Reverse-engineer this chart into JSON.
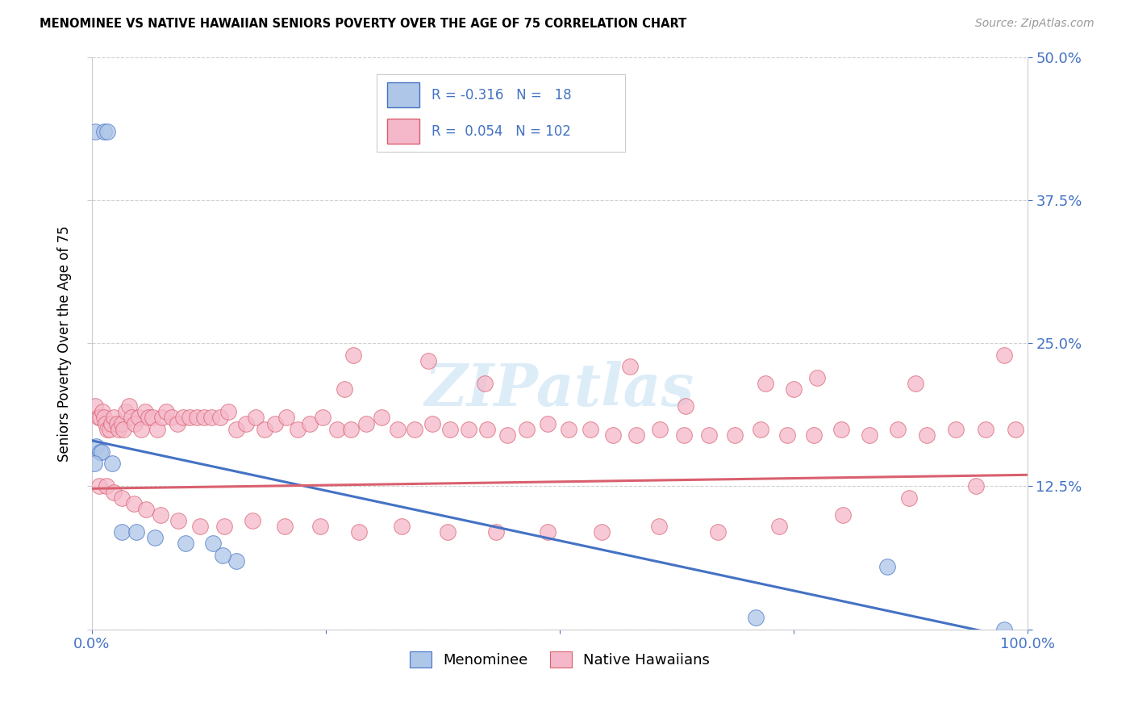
{
  "title": "MENOMINEE VS NATIVE HAWAIIAN SENIORS POVERTY OVER THE AGE OF 75 CORRELATION CHART",
  "source": "Source: ZipAtlas.com",
  "ylabel": "Seniors Poverty Over the Age of 75",
  "xlim": [
    0,
    1.0
  ],
  "ylim": [
    0,
    0.5
  ],
  "yticks": [
    0.0,
    0.125,
    0.25,
    0.375,
    0.5
  ],
  "ytick_labels_right": [
    "",
    "12.5%",
    "25.0%",
    "37.5%",
    "50.0%"
  ],
  "xticks": [
    0.0,
    0.25,
    0.5,
    0.75,
    1.0
  ],
  "xtick_labels": [
    "0.0%",
    "",
    "",
    "",
    "100.0%"
  ],
  "menominee_R": -0.316,
  "menominee_N": 18,
  "hawaiian_R": 0.054,
  "hawaiian_N": 102,
  "menominee_color": "#aec6e8",
  "hawaiian_color": "#f5b8ca",
  "menominee_line_color": "#4472c4",
  "hawaiian_line_color": "#d9606e",
  "axis_color": "#4472c4",
  "background_color": "#ffffff",
  "menominee_x": [
    0.004,
    0.013,
    0.017,
    0.005,
    0.009,
    0.011,
    0.003,
    0.022,
    0.032,
    0.048,
    0.068,
    0.1,
    0.13,
    0.155,
    0.14,
    0.85,
    0.71,
    0.975
  ],
  "menominee_y": [
    0.435,
    0.435,
    0.435,
    0.16,
    0.155,
    0.155,
    0.145,
    0.145,
    0.085,
    0.085,
    0.08,
    0.075,
    0.075,
    0.06,
    0.065,
    0.055,
    0.01,
    0.0
  ],
  "hawaiian_x": [
    0.004,
    0.007,
    0.009,
    0.012,
    0.013,
    0.015,
    0.017,
    0.019,
    0.021,
    0.024,
    0.027,
    0.029,
    0.032,
    0.034,
    0.037,
    0.04,
    0.043,
    0.046,
    0.05,
    0.053,
    0.057,
    0.061,
    0.065,
    0.07,
    0.075,
    0.08,
    0.086,
    0.092,
    0.098,
    0.105,
    0.112,
    0.12,
    0.128,
    0.137,
    0.146,
    0.155,
    0.165,
    0.175,
    0.185,
    0.196,
    0.208,
    0.22,
    0.233,
    0.247,
    0.262,
    0.277,
    0.293,
    0.31,
    0.327,
    0.345,
    0.364,
    0.383,
    0.403,
    0.423,
    0.444,
    0.465,
    0.487,
    0.51,
    0.533,
    0.557,
    0.582,
    0.607,
    0.633,
    0.66,
    0.687,
    0.715,
    0.743,
    0.772,
    0.801,
    0.831,
    0.861,
    0.892,
    0.923,
    0.955,
    0.987,
    0.008,
    0.016,
    0.024,
    0.032,
    0.045,
    0.058,
    0.074,
    0.093,
    0.116,
    0.142,
    0.172,
    0.206,
    0.244,
    0.286,
    0.331,
    0.38,
    0.432,
    0.487,
    0.545,
    0.606,
    0.669,
    0.735,
    0.803,
    0.873,
    0.945,
    0.28,
    0.36
  ],
  "hawaiian_y": [
    0.195,
    0.185,
    0.185,
    0.19,
    0.185,
    0.18,
    0.175,
    0.175,
    0.18,
    0.185,
    0.18,
    0.175,
    0.18,
    0.175,
    0.19,
    0.195,
    0.185,
    0.18,
    0.185,
    0.175,
    0.19,
    0.185,
    0.185,
    0.175,
    0.185,
    0.19,
    0.185,
    0.18,
    0.185,
    0.185,
    0.185,
    0.185,
    0.185,
    0.185,
    0.19,
    0.175,
    0.18,
    0.185,
    0.175,
    0.18,
    0.185,
    0.175,
    0.18,
    0.185,
    0.175,
    0.175,
    0.18,
    0.185,
    0.175,
    0.175,
    0.18,
    0.175,
    0.175,
    0.175,
    0.17,
    0.175,
    0.18,
    0.175,
    0.175,
    0.17,
    0.17,
    0.175,
    0.17,
    0.17,
    0.17,
    0.175,
    0.17,
    0.17,
    0.175,
    0.17,
    0.175,
    0.17,
    0.175,
    0.175,
    0.175,
    0.125,
    0.125,
    0.12,
    0.115,
    0.11,
    0.105,
    0.1,
    0.095,
    0.09,
    0.09,
    0.095,
    0.09,
    0.09,
    0.085,
    0.09,
    0.085,
    0.085,
    0.085,
    0.085,
    0.09,
    0.085,
    0.09,
    0.1,
    0.115,
    0.125,
    0.24,
    0.235
  ],
  "hawaiian_outlier_x": [
    0.27,
    0.42,
    0.575,
    0.635,
    0.72,
    0.75,
    0.775,
    0.88,
    0.975
  ],
  "hawaiian_outlier_y": [
    0.21,
    0.215,
    0.23,
    0.195,
    0.215,
    0.21,
    0.22,
    0.215,
    0.24
  ],
  "menominee_trend_x": [
    0.0,
    1.0
  ],
  "menominee_trend_y": [
    0.165,
    -0.01
  ],
  "hawaiian_trend_x": [
    0.0,
    1.0
  ],
  "hawaiian_trend_y": [
    0.123,
    0.135
  ]
}
